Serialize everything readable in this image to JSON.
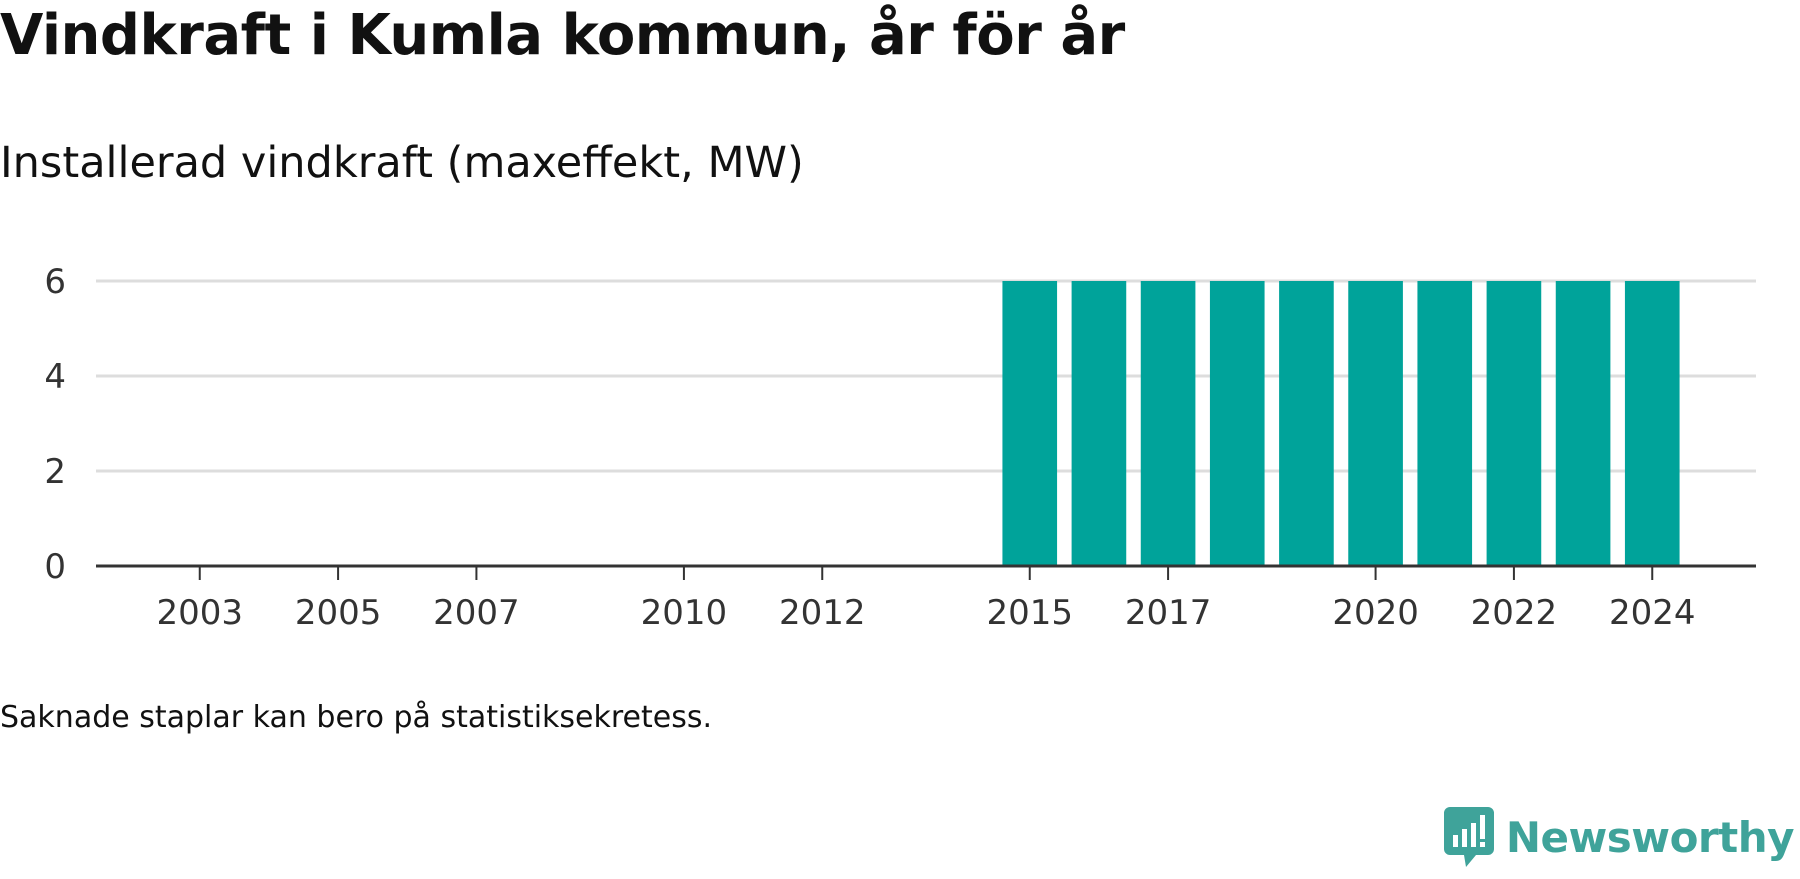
{
  "header": {
    "title": "Vindkraft i Kumla kommun, år för år",
    "subtitle": "Installerad vindkraft (maxeffekt, MW)"
  },
  "footer": {
    "note": "Saknade staplar kan bero på statistiksekretess.",
    "brand": "Newsworthy",
    "brand_icon": "chat-bubble-bar-chart-icon"
  },
  "colors": {
    "bar": "#00a39a",
    "grid": "#dddddd",
    "axis": "#333333",
    "brand": "#3fa39a"
  },
  "chart_data": {
    "type": "bar",
    "title": "Vindkraft i Kumla kommun, år för år",
    "subtitle": "Installerad vindkraft (maxeffekt, MW)",
    "xlabel": "",
    "ylabel": "",
    "ylim": [
      0,
      6
    ],
    "yticks": [
      0,
      2,
      4,
      6
    ],
    "xlim": [
      2001.5,
      2025.5
    ],
    "xticks": [
      2003,
      2005,
      2007,
      2010,
      2012,
      2015,
      2017,
      2020,
      2022,
      2024
    ],
    "grid": true,
    "legend": "none",
    "categories": [
      2015,
      2016,
      2017,
      2018,
      2019,
      2020,
      2021,
      2022,
      2023,
      2024
    ],
    "values": [
      6,
      6,
      6,
      6,
      6,
      6,
      6,
      6,
      6,
      6
    ]
  }
}
